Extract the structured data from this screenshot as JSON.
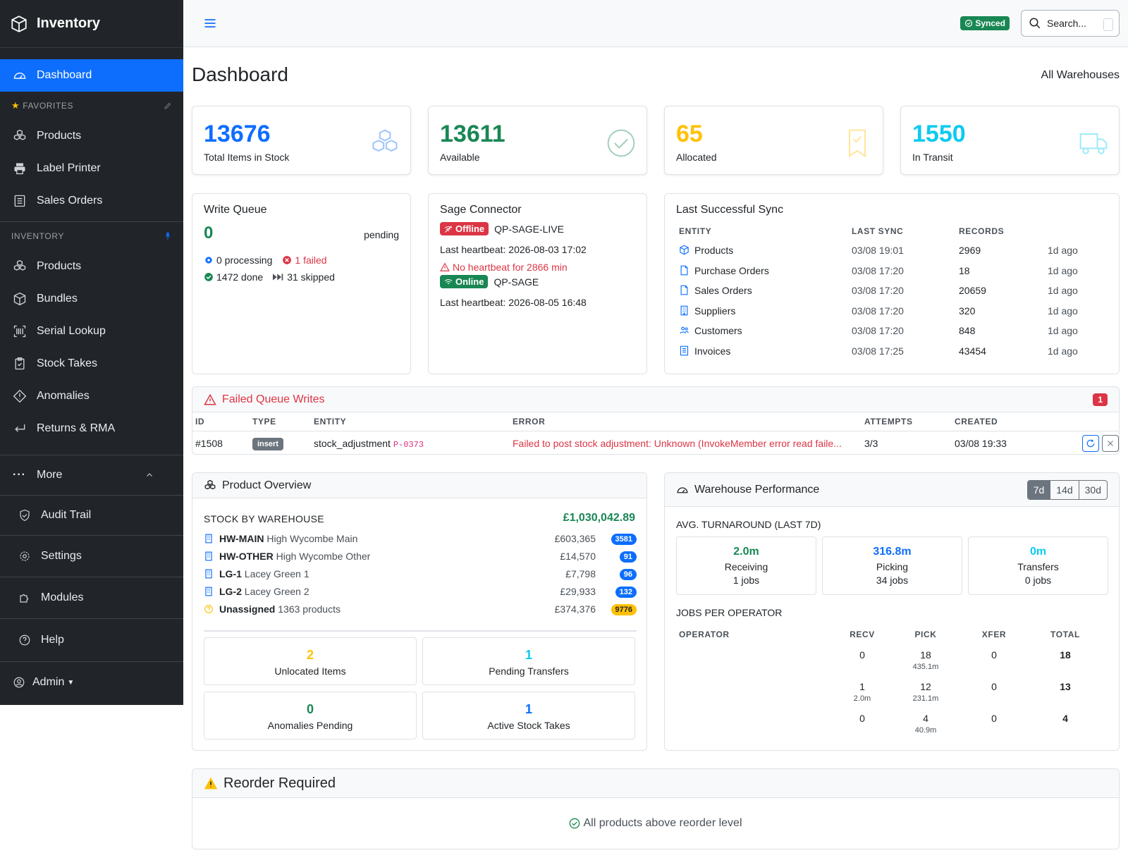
{
  "sidebar": {
    "brand": "Inventory",
    "dashboard": "Dashboard",
    "favorites_heading": "FAVORITES",
    "favorites": [
      "Products",
      "Label Printer",
      "Sales Orders"
    ],
    "inventory_heading": "INVENTORY",
    "inventory": [
      "Products",
      "Bundles",
      "Serial Lookup",
      "Stock Takes",
      "Anomalies",
      "Returns & RMA"
    ],
    "more": "More",
    "audit_trail": "Audit Trail",
    "settings": "Settings",
    "modules": "Modules",
    "help": "Help",
    "user": "Admin"
  },
  "topbar": {
    "synced": "Synced",
    "search_placeholder": "Search..."
  },
  "page": {
    "title": "Dashboard",
    "warehouse_filter": "All Warehouses"
  },
  "stats": [
    {
      "value": "13676",
      "label": "Total Items in Stock",
      "color": "#0d6efd",
      "icon": "boxes-icon"
    },
    {
      "value": "13611",
      "label": "Available",
      "color": "#198754",
      "icon": "check-circle-icon"
    },
    {
      "value": "65",
      "label": "Allocated",
      "color": "#ffc107",
      "icon": "bookmark-check-icon"
    },
    {
      "value": "1550",
      "label": "In Transit",
      "color": "#0dcaf0",
      "icon": "truck-icon"
    }
  ],
  "write_queue": {
    "title": "Write Queue",
    "pending_count": "0",
    "pending_label": "pending",
    "processing": "0 processing",
    "failed": "1 failed",
    "done": "1472 done",
    "skipped": "31 skipped"
  },
  "sage": {
    "title": "Sage Connector",
    "conn1_status": "Offline",
    "conn1_name": "QP-SAGE-LIVE",
    "conn1_heartbeat": "Last heartbeat: 2026-08-03 17:02",
    "conn1_warning": "No heartbeat for 2866 min",
    "conn2_status": "Online",
    "conn2_name": "QP-SAGE",
    "conn2_heartbeat": "Last heartbeat: 2026-08-05 16:48"
  },
  "last_sync": {
    "title": "Last Successful Sync",
    "headers": [
      "ENTITY",
      "LAST SYNC",
      "RECORDS"
    ],
    "rows": [
      {
        "entity": "Products",
        "last": "03/08 19:01",
        "records": "2969",
        "ago": "1d ago",
        "icon": "box-icon"
      },
      {
        "entity": "Purchase Orders",
        "last": "03/08 17:20",
        "records": "18",
        "ago": "1d ago",
        "icon": "file-icon"
      },
      {
        "entity": "Sales Orders",
        "last": "03/08 17:20",
        "records": "20659",
        "ago": "1d ago",
        "icon": "file-icon"
      },
      {
        "entity": "Suppliers",
        "last": "03/08 17:20",
        "records": "320",
        "ago": "1d ago",
        "icon": "building-icon"
      },
      {
        "entity": "Customers",
        "last": "03/08 17:20",
        "records": "848",
        "ago": "1d ago",
        "icon": "people-icon"
      },
      {
        "entity": "Invoices",
        "last": "03/08 17:25",
        "records": "43454",
        "ago": "1d ago",
        "icon": "invoice-icon"
      }
    ]
  },
  "failed_writes": {
    "title": "Failed Queue Writes",
    "count": "1",
    "headers": [
      "ID",
      "TYPE",
      "ENTITY",
      "ERROR",
      "ATTEMPTS",
      "CREATED"
    ],
    "rows": [
      {
        "id": "#1508",
        "type": "insert",
        "entity": "stock_adjustment",
        "ref": "P-0373",
        "error": "Failed to post stock adjustment: Unknown (InvokeMember error read faile...",
        "attempts": "3/3",
        "created": "03/08 19:33"
      }
    ]
  },
  "product_overview": {
    "title": "Product Overview",
    "stock_heading": "STOCK BY WAREHOUSE",
    "total_value": "£1,030,042.89",
    "warehouses": [
      {
        "code": "HW-MAIN",
        "name": "High Wycombe Main",
        "value": "£603,365",
        "count": "3581",
        "badge_color": "#0d6efd"
      },
      {
        "code": "HW-OTHER",
        "name": "High Wycombe Other",
        "value": "£14,570",
        "count": "91",
        "badge_color": "#0d6efd"
      },
      {
        "code": "LG-1",
        "name": "Lacey Green 1",
        "value": "£7,798",
        "count": "96",
        "badge_color": "#0d6efd"
      },
      {
        "code": "LG-2",
        "name": "Lacey Green 2",
        "value": "£29,933",
        "count": "132",
        "badge_color": "#0d6efd"
      },
      {
        "code": "Unassigned",
        "name": "1363 products",
        "value": "£374,376",
        "count": "9776",
        "badge_color": "#ffc107"
      }
    ],
    "tiles": [
      {
        "value": "2",
        "label": "Unlocated Items",
        "color": "#ffc107"
      },
      {
        "value": "1",
        "label": "Pending Transfers",
        "color": "#0dcaf0"
      },
      {
        "value": "0",
        "label": "Anomalies Pending",
        "color": "#198754"
      },
      {
        "value": "1",
        "label": "Active Stock Takes",
        "color": "#0d6efd"
      }
    ]
  },
  "warehouse_perf": {
    "title": "Warehouse Performance",
    "ranges": [
      "7d",
      "14d",
      "30d"
    ],
    "active_range": "7d",
    "avg_heading": "AVG. TURNAROUND (LAST 7D)",
    "turnaround": [
      {
        "value": "2.0m",
        "label": "Receiving",
        "jobs": "1 jobs",
        "color": "#198754"
      },
      {
        "value": "316.8m",
        "label": "Picking",
        "jobs": "34 jobs",
        "color": "#0d6efd"
      },
      {
        "value": "0m",
        "label": "Transfers",
        "jobs": "0 jobs",
        "color": "#0dcaf0"
      }
    ],
    "jobs_heading": "JOBS PER OPERATOR",
    "headers": [
      "OPERATOR",
      "RECV",
      "PICK",
      "XFER",
      "TOTAL"
    ],
    "rows": [
      {
        "operator": "",
        "recv": "0",
        "recv_sub": "",
        "pick": "18",
        "pick_sub": "435.1m",
        "xfer": "0",
        "total": "18"
      },
      {
        "operator": "",
        "recv": "1",
        "recv_sub": "2.0m",
        "pick": "12",
        "pick_sub": "231.1m",
        "xfer": "0",
        "total": "13"
      },
      {
        "operator": "",
        "recv": "0",
        "recv_sub": "",
        "pick": "4",
        "pick_sub": "40.9m",
        "xfer": "0",
        "total": "4"
      }
    ]
  },
  "reorder": {
    "title": "Reorder Required",
    "message": "All products above reorder level"
  }
}
